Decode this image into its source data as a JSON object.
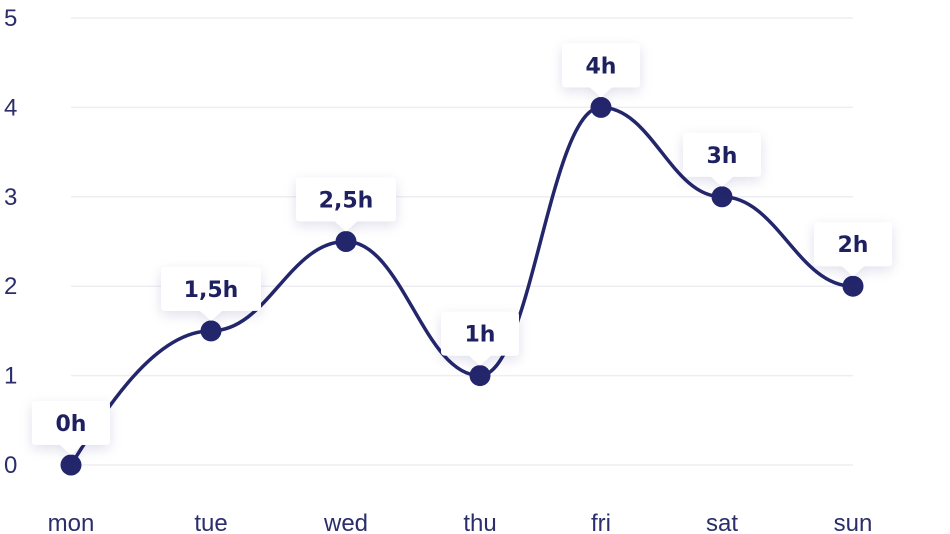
{
  "colors": {
    "line": "#23266b",
    "point": "#23266b",
    "tick_text": "#2b2e6a",
    "grid": "#eeeef2",
    "callout_bg": "#ffffff",
    "callout_text": "#1e2060"
  },
  "chart_data": {
    "type": "line",
    "categories": [
      "mon",
      "tue",
      "wed",
      "thu",
      "fri",
      "sat",
      "sun"
    ],
    "values": [
      0,
      1.5,
      2.5,
      1,
      4,
      3,
      2
    ],
    "data_labels": [
      "0h",
      "1,5h",
      "2,5h",
      "1h",
      "4h",
      "3h",
      "2h"
    ],
    "yticks": [
      "0",
      "1",
      "2",
      "3",
      "4",
      "5"
    ],
    "ylim": [
      0,
      5
    ],
    "grid": true,
    "legend": "none",
    "curve": "smooth"
  }
}
